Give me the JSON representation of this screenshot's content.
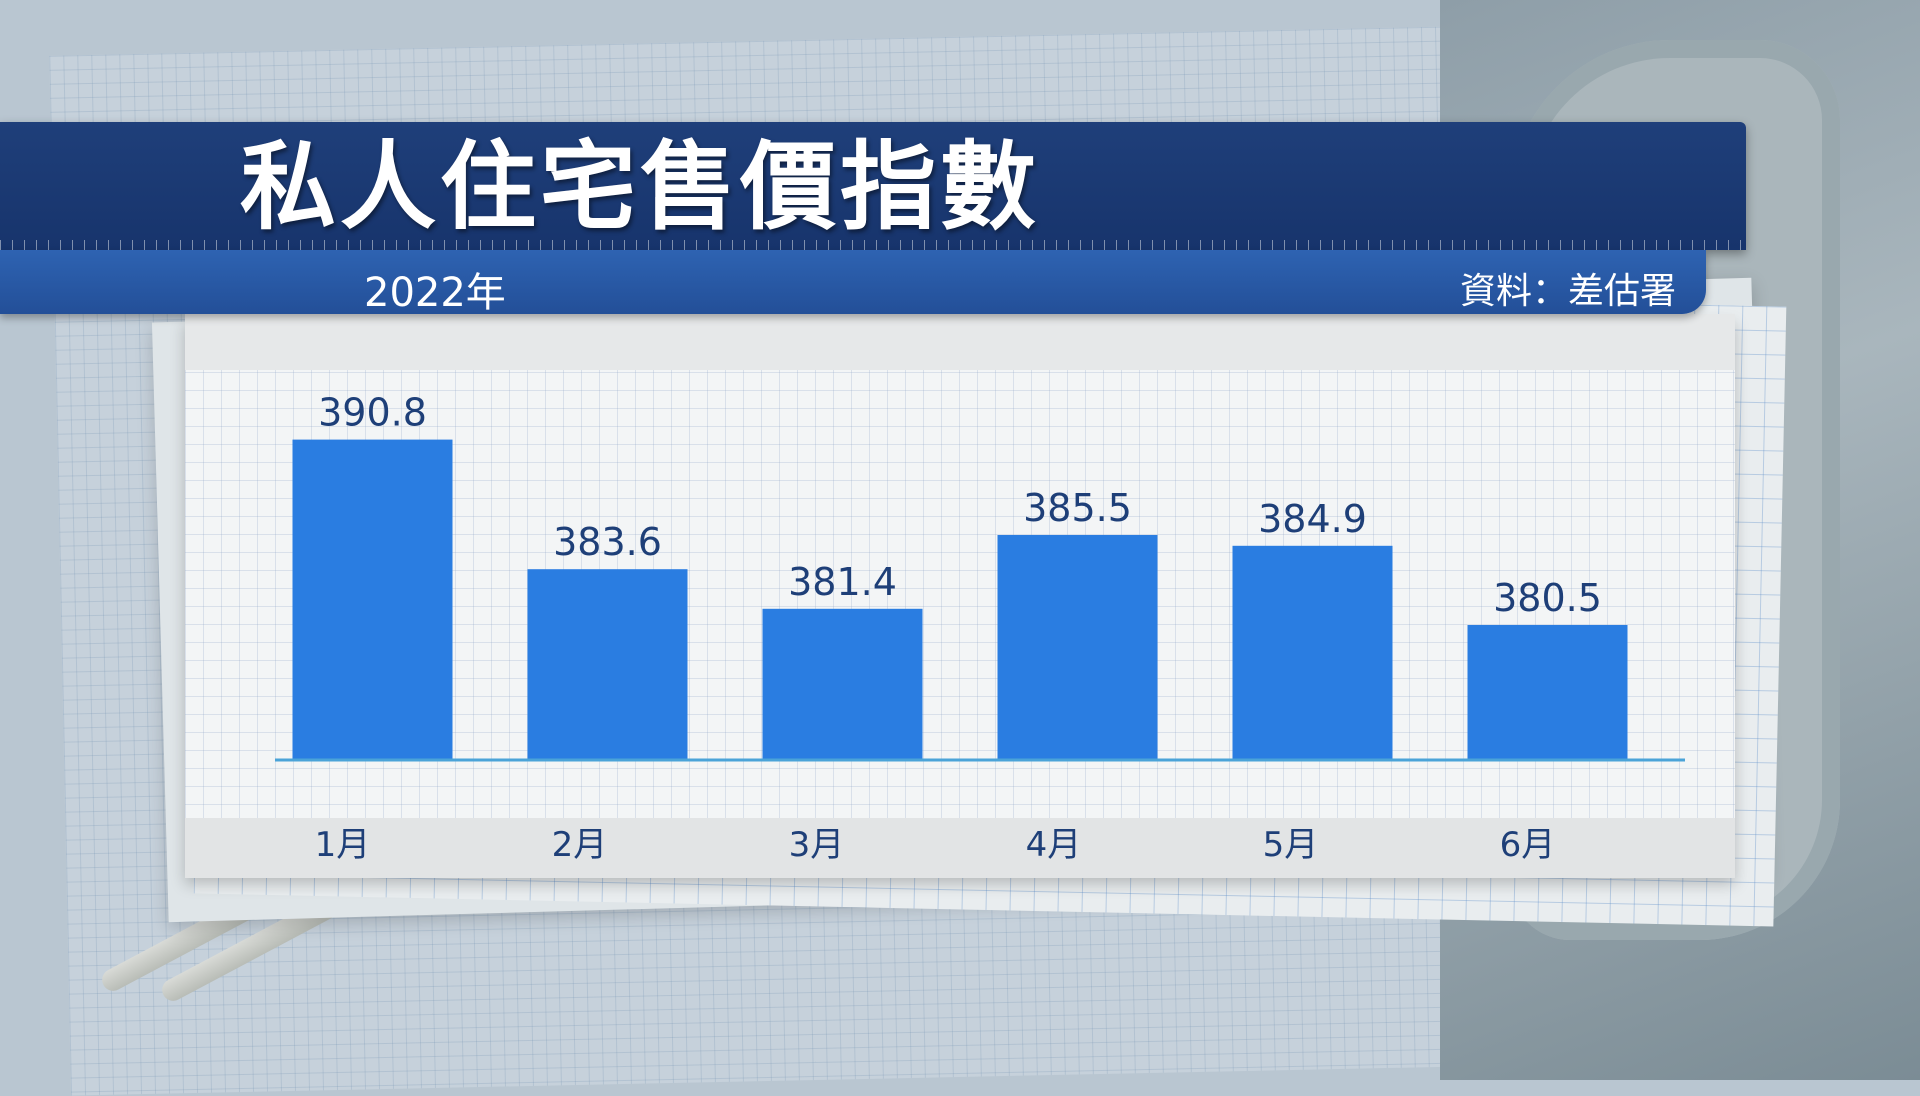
{
  "header": {
    "title": "私人住宅售價指數",
    "year": "2022年",
    "source": "資料：差估署"
  },
  "colors": {
    "bar": "#2a7de1",
    "title_band": "#1f3f7a",
    "sub_band": "#2e63b2",
    "axis": "#4aa3d8",
    "label": "#1e3f78"
  },
  "chart_data": {
    "type": "bar",
    "categories": [
      "1月",
      "2月",
      "3月",
      "4月",
      "5月",
      "6月"
    ],
    "values": [
      390.8,
      383.6,
      381.4,
      385.5,
      384.9,
      380.5
    ],
    "value_labels": [
      "390.8",
      "383.6",
      "381.4",
      "385.5",
      "384.9",
      "380.5"
    ],
    "title": "私人住宅售價指數",
    "subtitle": "2022年",
    "xlabel": "",
    "ylabel": "",
    "ylim": [
      373,
      391
    ],
    "grid": false,
    "legend": "none"
  }
}
